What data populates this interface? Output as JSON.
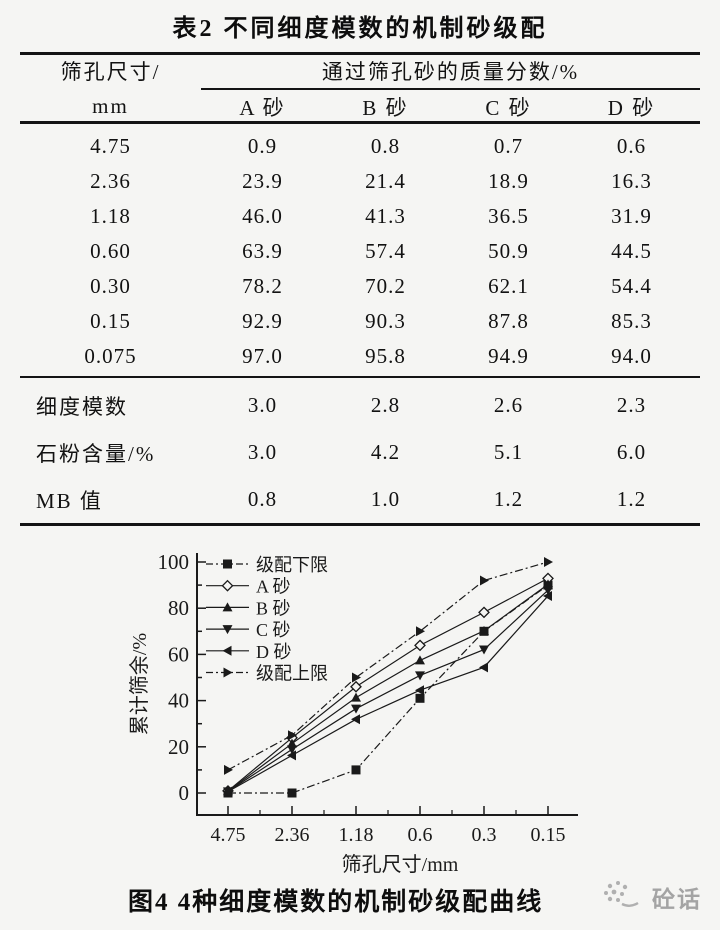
{
  "page": {
    "background": "#f5f5f3",
    "ink_color": "#1a1a1a"
  },
  "table": {
    "title": "表2  不同细度模数的机制砂级配",
    "row_header_line1": "筛孔尺寸/",
    "row_header_line2": "mm",
    "span_header": "通过筛孔砂的质量分数/%",
    "sub_headers": [
      "A 砂",
      "B 砂",
      "C 砂",
      "D 砂"
    ],
    "rows": [
      {
        "label": "4.75",
        "values": [
          "0.9",
          "0.8",
          "0.7",
          "0.6"
        ]
      },
      {
        "label": "2.36",
        "values": [
          "23.9",
          "21.4",
          "18.9",
          "16.3"
        ]
      },
      {
        "label": "1.18",
        "values": [
          "46.0",
          "41.3",
          "36.5",
          "31.9"
        ]
      },
      {
        "label": "0.60",
        "values": [
          "63.9",
          "57.4",
          "50.9",
          "44.5"
        ]
      },
      {
        "label": "0.30",
        "values": [
          "78.2",
          "70.2",
          "62.1",
          "54.4"
        ]
      },
      {
        "label": "0.15",
        "values": [
          "92.9",
          "90.3",
          "87.8",
          "85.3"
        ]
      },
      {
        "label": "0.075",
        "values": [
          "97.0",
          "95.8",
          "94.9",
          "94.0"
        ]
      }
    ],
    "summary_rows": [
      {
        "label": "细度模数",
        "values": [
          "3.0",
          "2.8",
          "2.6",
          "2.3"
        ]
      },
      {
        "label": "石粉含量/%",
        "values": [
          "3.0",
          "4.2",
          "5.1",
          "6.0"
        ]
      },
      {
        "label": "MB 值",
        "values": [
          "0.8",
          "1.0",
          "1.2",
          "1.2"
        ]
      }
    ]
  },
  "figure": {
    "caption": "图4  4种细度模数的机制砂级配曲线"
  },
  "watermark": {
    "text": "砼话"
  },
  "chart_data": {
    "type": "line",
    "title": "",
    "xlabel": "筛孔尺寸/mm",
    "ylabel": "累计筛余/%",
    "categories": [
      "4.75",
      "2.36",
      "1.18",
      "0.6",
      "0.3",
      "0.15"
    ],
    "ylim": [
      0,
      100
    ],
    "ytick_interval": 20,
    "grid": false,
    "legend_position": "upper-left-inside",
    "series": [
      {
        "name": "级配下限",
        "marker": "square-filled",
        "line_style": "dashdot",
        "values": [
          0,
          0,
          10,
          41,
          70,
          90
        ]
      },
      {
        "name": "A 砂",
        "marker": "diamond-open",
        "line_style": "solid",
        "values": [
          0.9,
          23.9,
          46.0,
          63.9,
          78.2,
          92.9
        ]
      },
      {
        "name": "B 砂",
        "marker": "triangle-up-filled",
        "line_style": "solid",
        "values": [
          0.8,
          21.4,
          41.3,
          57.4,
          70.2,
          90.3
        ]
      },
      {
        "name": "C 砂",
        "marker": "triangle-down-filled",
        "line_style": "solid",
        "values": [
          0.7,
          18.9,
          36.5,
          50.9,
          62.1,
          87.8
        ]
      },
      {
        "name": "D 砂",
        "marker": "triangle-left-filled",
        "line_style": "solid",
        "values": [
          0.6,
          16.3,
          31.9,
          44.5,
          54.4,
          85.3
        ]
      },
      {
        "name": "级配上限",
        "marker": "triangle-right-filled",
        "line_style": "dashdot",
        "values": [
          10,
          25,
          50,
          70,
          92,
          100
        ]
      }
    ]
  }
}
